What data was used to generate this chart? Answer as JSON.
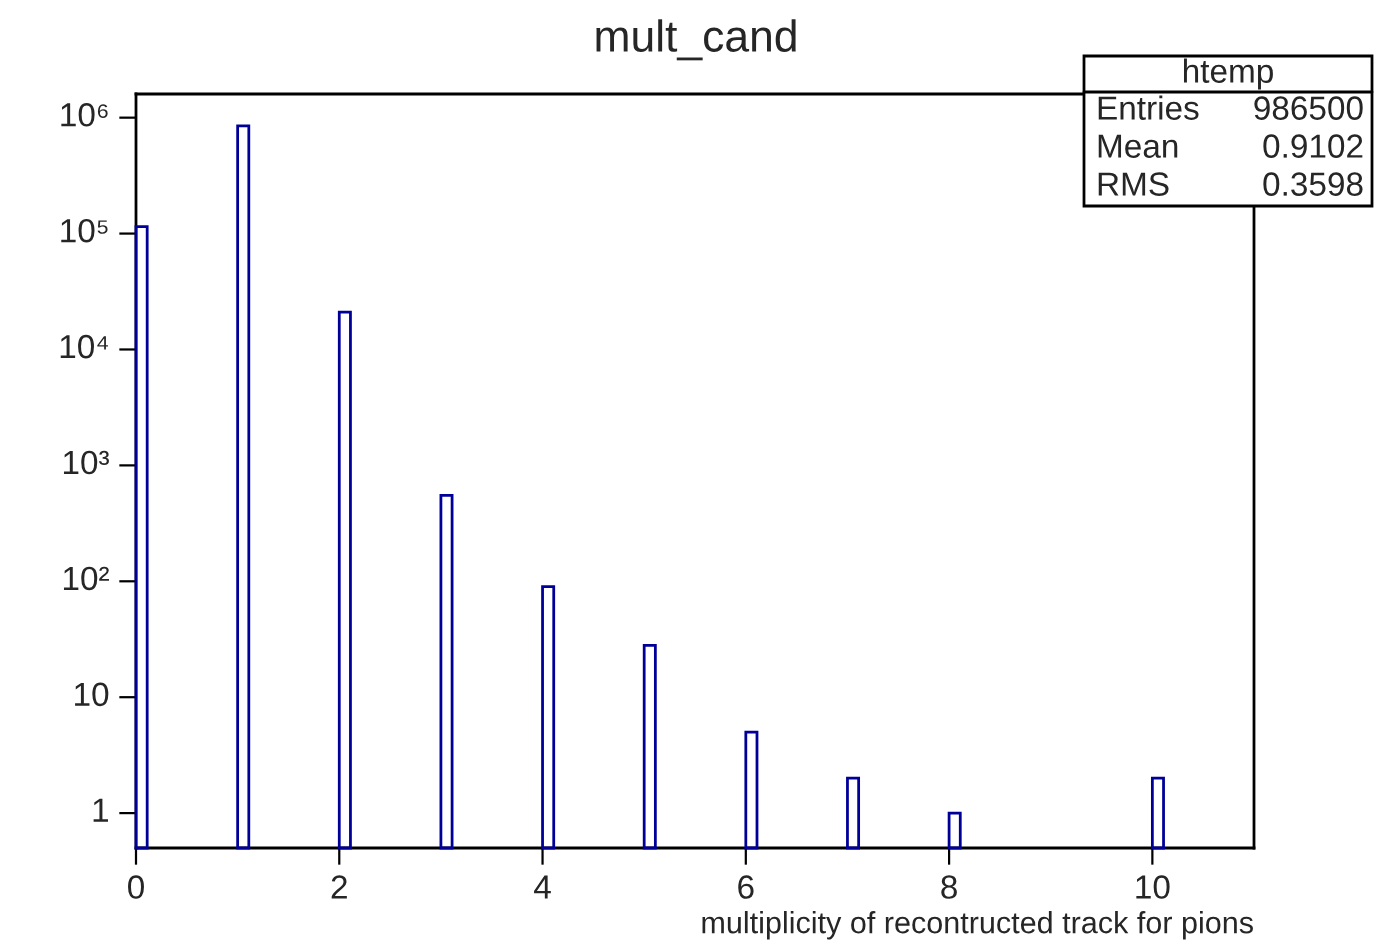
{
  "chart_data": {
    "type": "bar",
    "title": "mult_cand",
    "xlabel": "multiplicity of recontructed track for pions",
    "x": [
      0,
      1,
      2,
      3,
      4,
      5,
      6,
      7,
      8,
      10
    ],
    "values": [
      115000,
      850000,
      21000,
      550,
      90,
      28,
      5,
      2,
      1,
      2
    ],
    "color": "#000099",
    "log": "y",
    "grid": false,
    "xlim": [
      0,
      11
    ],
    "xticks": [
      0,
      2,
      4,
      6,
      8,
      10
    ],
    "ylim": [
      0.5,
      1600000
    ],
    "yticks": [
      1,
      10,
      {
        "value": 100,
        "label": "10²"
      },
      {
        "value": 1000,
        "label": "10³"
      },
      {
        "value": 10000,
        "label": "10⁴"
      },
      {
        "value": 100000,
        "label": "10⁵"
      },
      {
        "value": 1000000,
        "label": "10⁶"
      }
    ],
    "annotations": [
      "htemp",
      "Entries",
      "986500",
      "Mean",
      "0.9102",
      "RMS",
      "0.3598"
    ]
  }
}
